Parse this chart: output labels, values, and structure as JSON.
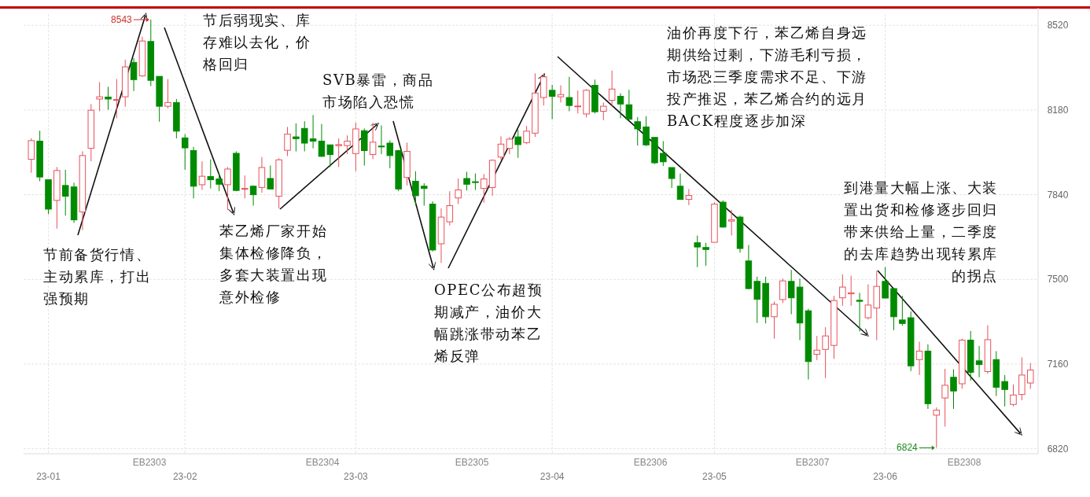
{
  "chart_data": {
    "type": "candlestick",
    "categories": [
      null,
      null,
      "23-01",
      null,
      null,
      null,
      null,
      null,
      null,
      null,
      null,
      null,
      null,
      null,
      null,
      null,
      null,
      null,
      "23-02",
      null,
      null,
      null,
      null,
      null,
      null,
      null,
      null,
      null,
      null,
      null,
      null,
      null,
      null,
      null,
      null,
      null,
      null,
      null,
      "23-03",
      null,
      null,
      null,
      null,
      null,
      null,
      null,
      null,
      null,
      null,
      null,
      null,
      null,
      null,
      null,
      null,
      null,
      null,
      null,
      null,
      null,
      null,
      "23-04",
      null,
      null,
      null,
      null,
      null,
      null,
      null,
      null,
      null,
      null,
      null,
      null,
      null,
      null,
      null,
      null,
      null,
      null,
      "23-05",
      null,
      null,
      null,
      null,
      null,
      null,
      null,
      null,
      null,
      null,
      null,
      null,
      null,
      null,
      null,
      null,
      null,
      null,
      null,
      "23-06",
      null,
      null,
      null,
      null,
      null,
      null,
      null,
      null,
      null,
      null,
      null,
      null,
      null,
      null,
      null,
      null,
      null
    ],
    "ohlc": [
      [
        7982,
        8066,
        7928,
        8057
      ],
      [
        8055,
        8097,
        7894,
        7911
      ],
      [
        7900,
        7900,
        7762,
        7782
      ],
      [
        7817,
        7951,
        7704,
        7937
      ],
      [
        7877,
        7940,
        7756,
        7834
      ],
      [
        7871,
        7888,
        7727,
        7739
      ],
      [
        7771,
        8014,
        7698,
        7997
      ],
      [
        8026,
        8204,
        7974,
        8179
      ],
      [
        8224,
        8292,
        8175,
        8233
      ],
      [
        8232,
        8273,
        8181,
        8224
      ],
      [
        8219,
        8304,
        8147,
        8222
      ],
      [
        8233,
        8382,
        8193,
        8353
      ],
      [
        8371,
        8388,
        8256,
        8302
      ],
      [
        8317,
        8474,
        8313,
        8457
      ],
      [
        8455,
        8543,
        8276,
        8299
      ],
      [
        8315,
        8315,
        8133,
        8195
      ],
      [
        8195,
        8304,
        8187,
        8210
      ],
      [
        8210,
        8224,
        8066,
        8095
      ],
      [
        8068,
        8083,
        7940,
        8028
      ],
      [
        8017,
        8032,
        7825,
        7874
      ],
      [
        7880,
        7974,
        7859,
        7914
      ],
      [
        7913,
        7982,
        7865,
        7900
      ],
      [
        7903,
        7928,
        7854,
        7882
      ],
      [
        7880,
        7951,
        7779,
        7943
      ],
      [
        8006,
        8014,
        7854,
        7857
      ],
      [
        7862,
        7917,
        7825,
        7865
      ],
      [
        7874,
        7877,
        7796,
        7840
      ],
      [
        7869,
        7991,
        7848,
        7949
      ],
      [
        7905,
        7957,
        7863,
        7863
      ],
      [
        7834,
        7986,
        7785,
        7980
      ],
      [
        8018,
        8112,
        7995,
        8083
      ],
      [
        8072,
        8126,
        8014,
        8065
      ],
      [
        8106,
        8135,
        8014,
        8047
      ],
      [
        8064,
        8160,
        8026,
        8055
      ],
      [
        8055,
        8124,
        7991,
        7994
      ],
      [
        8040,
        8040,
        7951,
        8001
      ],
      [
        8037,
        8066,
        7951,
        8041
      ],
      [
        8037,
        8078,
        8003,
        8055
      ],
      [
        8005,
        8129,
        7934,
        8104
      ],
      [
        8097,
        8106,
        7957,
        8017
      ],
      [
        8001,
        8129,
        7983,
        8051
      ],
      [
        8035,
        8118,
        8003,
        8032
      ],
      [
        8047,
        8058,
        7946,
        7997
      ],
      [
        8017,
        8020,
        7854,
        7863
      ],
      [
        7909,
        8049,
        7877,
        8014
      ],
      [
        7894,
        7934,
        7796,
        7836
      ],
      [
        7874,
        7886,
        7796,
        7865
      ],
      [
        7802,
        7813,
        7612,
        7618
      ],
      [
        7643,
        7785,
        7566,
        7750
      ],
      [
        7731,
        7854,
        7716,
        7796
      ],
      [
        7827,
        7905,
        7802,
        7859
      ],
      [
        7905,
        7932,
        7857,
        7882
      ],
      [
        7892,
        7925,
        7859,
        7889
      ],
      [
        7865,
        7923,
        7808,
        7903
      ],
      [
        7869,
        7982,
        7836,
        7978
      ],
      [
        7991,
        8074,
        7980,
        8043
      ],
      [
        8026,
        8072,
        8003,
        8063
      ],
      [
        8072,
        8101,
        7988,
        8041
      ],
      [
        8049,
        8116,
        8043,
        8095
      ],
      [
        8087,
        8327,
        8072,
        8248
      ],
      [
        8230,
        8327,
        8198,
        8313
      ],
      [
        8259,
        8281,
        8143,
        8235
      ],
      [
        8233,
        8279,
        8210,
        8242
      ],
      [
        8230,
        8313,
        8175,
        8198
      ],
      [
        8194,
        8258,
        8166,
        8196
      ],
      [
        8164,
        8264,
        8150,
        8259
      ],
      [
        8279,
        8302,
        8166,
        8173
      ],
      [
        8175,
        8210,
        8139,
        8195
      ],
      [
        8219,
        8338,
        8196,
        8264
      ],
      [
        8235,
        8247,
        8147,
        8204
      ],
      [
        8201,
        8261,
        8141,
        8143
      ],
      [
        8133,
        8152,
        8037,
        8104
      ],
      [
        8112,
        8155,
        8035,
        8040
      ],
      [
        8070,
        8070,
        7963,
        7968
      ],
      [
        8006,
        8055,
        7955,
        7972
      ],
      [
        7949,
        7949,
        7867,
        7905
      ],
      [
        7874,
        7925,
        7821,
        7821
      ],
      [
        7821,
        7863,
        7798,
        7837
      ],
      [
        7647,
        7676,
        7549,
        7630
      ],
      [
        7628,
        7647,
        7555,
        7620
      ],
      [
        7649,
        7810,
        7649,
        7802
      ],
      [
        7810,
        7817,
        7707,
        7710
      ],
      [
        7734,
        7779,
        7676,
        7739
      ],
      [
        7750,
        7756,
        7607,
        7624
      ],
      [
        7574,
        7638,
        7460,
        7463
      ],
      [
        7492,
        7511,
        7325,
        7420
      ],
      [
        7484,
        7511,
        7323,
        7350
      ],
      [
        7350,
        7411,
        7262,
        7400
      ],
      [
        7419,
        7503,
        7405,
        7494
      ],
      [
        7492,
        7538,
        7360,
        7426
      ],
      [
        7469,
        7503,
        7256,
        7325
      ],
      [
        7374,
        7382,
        7098,
        7170
      ],
      [
        7199,
        7273,
        7176,
        7216
      ],
      [
        7219,
        7308,
        7104,
        7273
      ],
      [
        7235,
        7434,
        7181,
        7415
      ],
      [
        7426,
        7520,
        7394,
        7469
      ],
      [
        7442,
        7515,
        7394,
        7446
      ],
      [
        7416,
        7446,
        7291,
        7412
      ],
      [
        7346,
        7480,
        7339,
        7397
      ],
      [
        7385,
        7534,
        7256,
        7472
      ],
      [
        7492,
        7549,
        7425,
        7425
      ],
      [
        7463,
        7463,
        7296,
        7350
      ],
      [
        7337,
        7434,
        7314,
        7323
      ],
      [
        7346,
        7371,
        7132,
        7153
      ],
      [
        7178,
        7250,
        7116,
        7212
      ],
      [
        7212,
        7239,
        6980,
        7001
      ],
      [
        6955,
        6986,
        6824,
        6975
      ],
      [
        7024,
        7141,
        6909,
        7075
      ],
      [
        7107,
        7139,
        6980,
        7052
      ],
      [
        7081,
        7262,
        7061,
        7256
      ],
      [
        7256,
        7293,
        7093,
        7127
      ],
      [
        7173,
        7233,
        7107,
        7158
      ],
      [
        7130,
        7316,
        7121,
        7258
      ],
      [
        7178,
        7212,
        7032,
        7067
      ],
      [
        7090,
        7116,
        6990,
        7058
      ],
      [
        6998,
        7078,
        6990,
        7036
      ],
      [
        7038,
        7187,
        7015,
        7116
      ],
      [
        7084,
        7164,
        7061,
        7136
      ]
    ],
    "ylim": [
      6800,
      8590
    ],
    "yticks": [
      6820,
      7160,
      7500,
      7840,
      8180,
      8520
    ],
    "grid": true,
    "annotations": [
      "8543",
      "6824",
      "节前备货行情、主动累库，打出强预期",
      "节后弱现实、库存难以去化，价格回归",
      "苯乙烯厂家开始集体检修降负，多套大装置出现意外检修",
      "SVB暴雷，商品市场陷入恐慌",
      "OPEC公布超预期减产，油价大幅跳涨带动苯乙烯反弹",
      "油价再度下行，苯乙烯自身远期供给过剩，下游毛利亏损，市场恐三季度需求不足、下游投产推迟，苯乙烯合约的远月BACK程度逐步加深",
      "到港量大幅上涨、大装置出货和检修逐步回归带来供给上量，二季度的去库趋势出现转累库的拐点",
      "EB2303",
      "EB2304",
      "EB2305",
      "EB2306",
      "EB2307",
      "EB2308"
    ]
  }
}
